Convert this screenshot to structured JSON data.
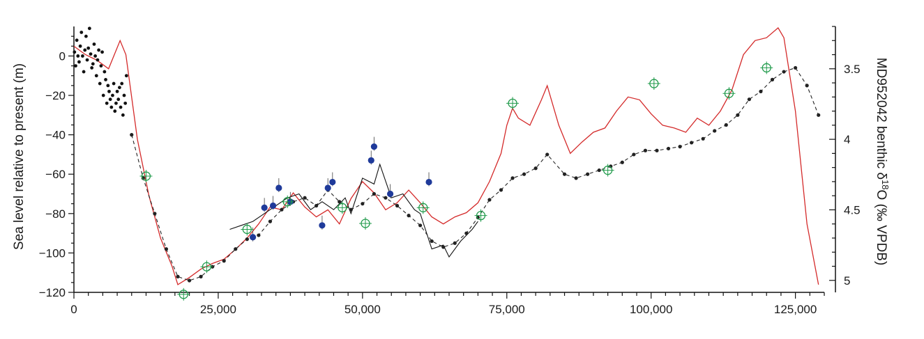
{
  "chart_data": {
    "type": "line",
    "title": "",
    "xlabel": "",
    "ylabel": "Sea level relative to present (m)",
    "y2label": "MD952042 benthic δ18O (‰ VPDB)",
    "y2label_parts": {
      "prefix": "MD952042 benthic δ",
      "sup": "18",
      "suffix": "O (‰ VPDB)"
    },
    "xlim": [
      0,
      130000
    ],
    "ylim": [
      -120,
      15
    ],
    "y2lim": [
      5.085,
      3.2
    ],
    "y2_inverted": true,
    "x_ticks": [
      0,
      25000,
      50000,
      75000,
      100000,
      125000
    ],
    "x_tick_labels": [
      "0",
      "25,000",
      "50,000",
      "75,000",
      "100,000",
      "125,000"
    ],
    "y_ticks": [
      0,
      -20,
      -40,
      -60,
      -80,
      -100,
      -120
    ],
    "y_tick_labels": [
      "0",
      "−20",
      "−40",
      "−60",
      "−80",
      "−100",
      "−120"
    ],
    "y2_ticks": [
      3.5,
      4,
      4.5,
      5
    ],
    "y2_tick_labels": [
      "3.5",
      "4",
      "4.5",
      "5"
    ],
    "grid": false,
    "colors": {
      "red_series": "#d42a2a",
      "black_series": "#111111",
      "dashed_series": "#222222",
      "green_markers": "#1f9a4a",
      "blue_markers": "#1f3a9a"
    },
    "series": [
      {
        "style": "red-line",
        "axis": "y2",
        "color": "#d42a2a",
        "x": [
          0,
          2000,
          4000,
          6000,
          8000,
          9000,
          11000,
          13000,
          15000,
          17000,
          18000,
          20000,
          22000,
          24000,
          26000,
          28000,
          30000,
          32000,
          34000,
          36000,
          38000,
          40000,
          42000,
          44000,
          46000,
          48000,
          50000,
          52000,
          54000,
          56000,
          58000,
          60000,
          62000,
          64000,
          66000,
          68000,
          70000,
          72000,
          74000,
          75000,
          76000,
          77000,
          79000,
          81000,
          82000,
          84000,
          86000,
          88000,
          90000,
          92000,
          94000,
          96000,
          98000,
          100000,
          102000,
          104000,
          106000,
          108000,
          110000,
          112000,
          114000,
          116000,
          118000,
          120000,
          122000,
          123000,
          125000,
          127000,
          129000
        ],
        "values": [
          3.34,
          3.4,
          3.44,
          3.5,
          3.3,
          3.4,
          4.0,
          4.4,
          4.7,
          4.9,
          5.03,
          4.98,
          4.92,
          4.88,
          4.85,
          4.78,
          4.7,
          4.6,
          4.48,
          4.5,
          4.38,
          4.48,
          4.55,
          4.5,
          4.6,
          4.42,
          4.3,
          4.38,
          4.5,
          4.45,
          4.36,
          4.45,
          4.55,
          4.6,
          4.55,
          4.52,
          4.45,
          4.3,
          4.1,
          3.9,
          3.78,
          3.85,
          3.9,
          3.72,
          3.62,
          3.9,
          4.1,
          4.02,
          3.95,
          3.92,
          3.8,
          3.7,
          3.72,
          3.82,
          3.9,
          3.92,
          3.95,
          3.85,
          3.9,
          3.8,
          3.65,
          3.4,
          3.3,
          3.28,
          3.21,
          3.28,
          3.8,
          4.6,
          5.03
        ]
      },
      {
        "style": "black-line",
        "axis": "y",
        "color": "#111111",
        "x": [
          27000,
          29000,
          31000,
          33000,
          35000,
          37000,
          39000,
          41000,
          43000,
          45000,
          47000,
          48000,
          50000,
          52000,
          53000,
          55000,
          57000,
          59000,
          60000,
          62000,
          64000,
          65000,
          67000,
          69000,
          70000
        ],
        "values": [
          -88,
          -86,
          -84,
          -80,
          -76,
          -72,
          -70,
          -78,
          -74,
          -78,
          -72,
          -80,
          -62,
          -65,
          -55,
          -72,
          -70,
          -78,
          -80,
          -98,
          -96,
          -102,
          -94,
          -88,
          -84
        ]
      },
      {
        "style": "dashed-line-with-dots",
        "axis": "y",
        "color": "#222222",
        "x": [
          10000,
          12000,
          14000,
          16000,
          18000,
          20000,
          22000,
          24000,
          26000,
          28000,
          30000,
          32000,
          34000,
          36000,
          38000,
          40000,
          42000,
          44000,
          46000,
          48000,
          50000,
          52000,
          54000,
          56000,
          58000,
          60000,
          62000,
          64000,
          66000,
          68000,
          70000,
          72000,
          74000,
          76000,
          78000,
          80000,
          82000,
          85000,
          87000,
          89000,
          91000,
          93000,
          95000,
          97000,
          99000,
          101000,
          103000,
          105000,
          107000,
          109000,
          111000,
          113000,
          115000,
          117000,
          119000,
          121000,
          123000,
          125000,
          127000,
          129000
        ],
        "values": [
          -40,
          -62,
          -80,
          -98,
          -112,
          -114,
          -112,
          -107,
          -104,
          -98,
          -93,
          -91,
          -84,
          -78,
          -74,
          -72,
          -76,
          -68,
          -74,
          -78,
          -75,
          -70,
          -72,
          -76,
          -81,
          -86,
          -94,
          -97,
          -95,
          -90,
          -82,
          -73,
          -68,
          -62,
          -60,
          -57,
          -50,
          -60,
          -62,
          -60,
          -58,
          -56,
          -54,
          -50,
          -48,
          -48,
          -47,
          -46,
          -44,
          -42,
          -38,
          -35,
          -30,
          -22,
          -18,
          -12,
          -8,
          -6,
          -15,
          -30
        ]
      }
    ],
    "points": [
      {
        "style": "black-dots",
        "axis": "y",
        "color": "#111111",
        "x": [
          100,
          300,
          500,
          700,
          900,
          1100,
          1300,
          1500,
          1700,
          1900,
          2100,
          2300,
          2500,
          2700,
          2900,
          3100,
          3300,
          3500,
          3700,
          3900,
          4100,
          4300,
          4500,
          4700,
          4900,
          5100,
          5300,
          5500,
          5700,
          5900,
          6100,
          6300,
          6500,
          6700,
          6900,
          7100,
          7300,
          7500,
          7700,
          7900,
          8100,
          8300,
          8500,
          8700,
          8900,
          9100
        ],
        "values": [
          2,
          -5,
          8,
          0,
          -3,
          5,
          12,
          0,
          -8,
          3,
          10,
          -2,
          4,
          14,
          1,
          -6,
          -4,
          6,
          0,
          -10,
          -2,
          3,
          -14,
          -5,
          2,
          -20,
          -8,
          -12,
          -24,
          -15,
          -18,
          -22,
          -26,
          -20,
          -14,
          -28,
          -24,
          -18,
          -22,
          -16,
          -26,
          -14,
          -30,
          -20,
          -24,
          -10
        ]
      },
      {
        "style": "blue-filled-circles",
        "axis": "y",
        "color": "#1f3a9a",
        "x": [
          31000,
          33000,
          34500,
          35500,
          37500,
          43000,
          44000,
          44800,
          51500,
          52000,
          54800,
          61500
        ],
        "values": [
          -92,
          -77,
          -76,
          -67,
          -74,
          -86,
          -67,
          -64,
          -53,
          -46,
          -70,
          -64
        ]
      },
      {
        "style": "green-open-circles",
        "axis": "y",
        "color": "#1f9a4a",
        "x": [
          12500,
          19000,
          23000,
          30000,
          37000,
          46500,
          50500,
          60500,
          70500,
          76000,
          92500,
          100500,
          113500,
          120000
        ],
        "values": [
          -61,
          -121,
          -107,
          -88,
          -74,
          -77,
          -85,
          -77,
          -81,
          -24,
          -58,
          -14,
          -19,
          -6
        ]
      }
    ]
  }
}
